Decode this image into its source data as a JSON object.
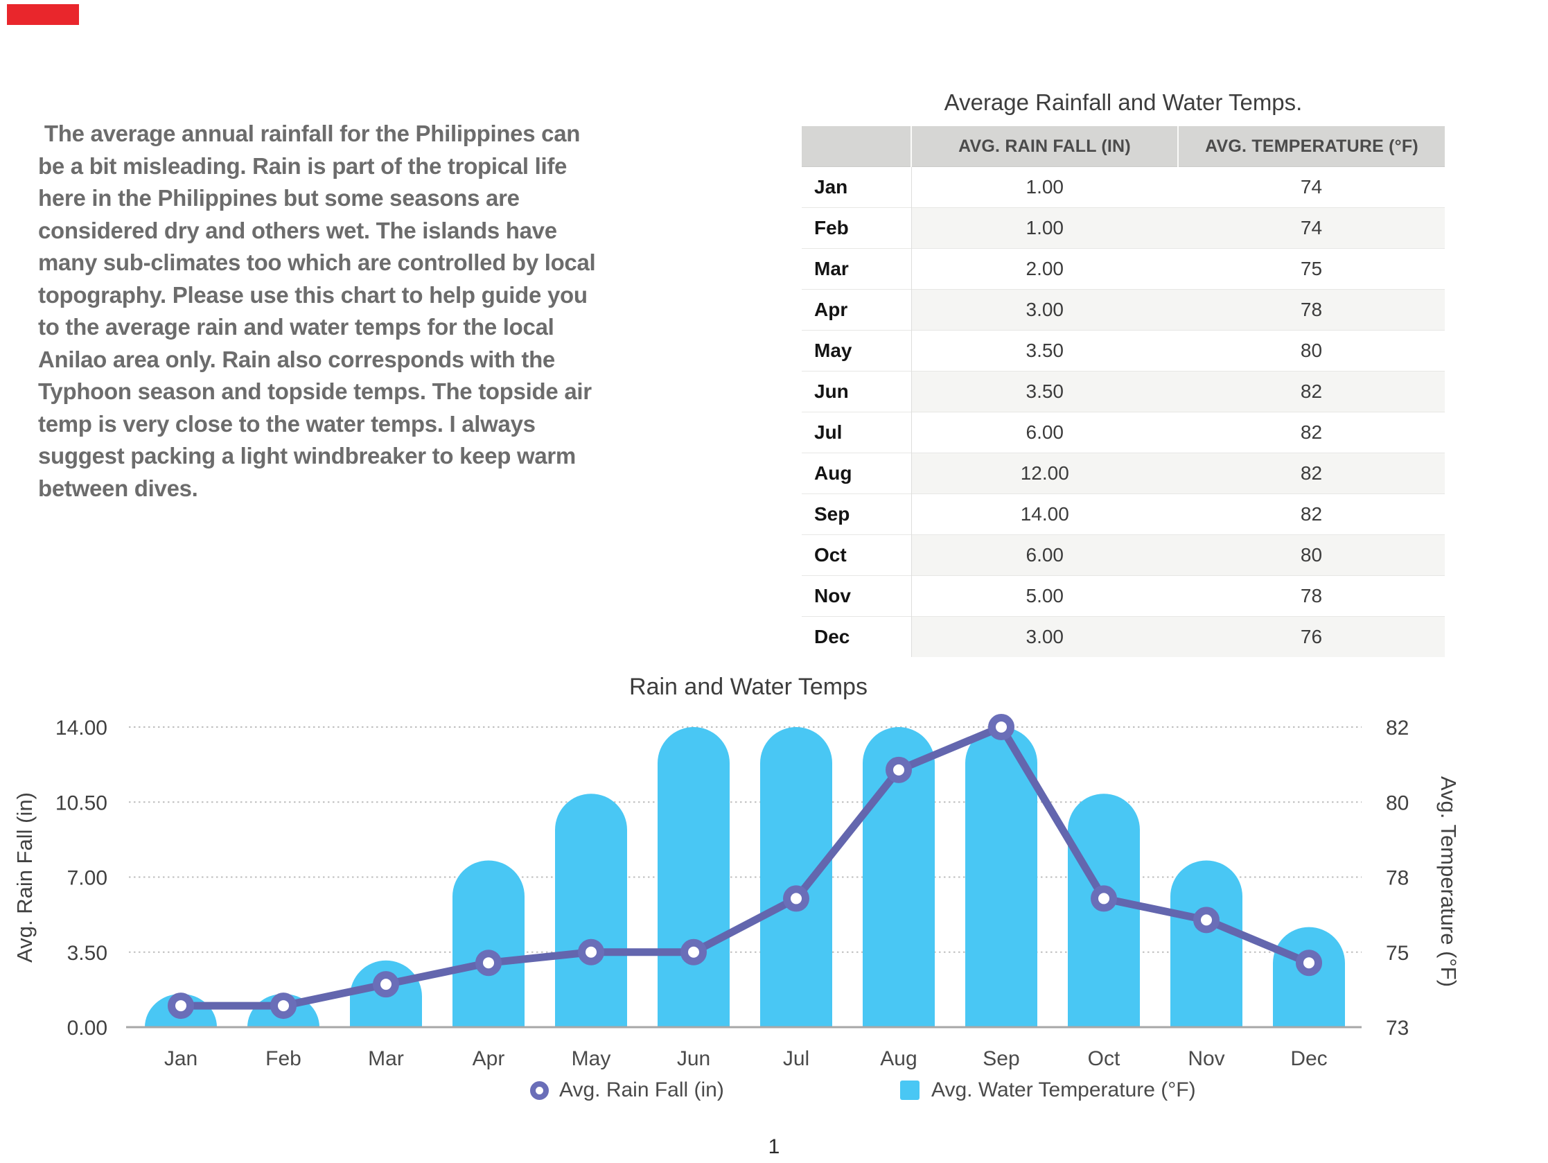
{
  "page": {
    "number": "1",
    "background": "#FFFFFF"
  },
  "red_marker": {
    "color": "#E9262C"
  },
  "intro_paragraph": {
    "text": " The average annual rainfall for the Philippines can\nbe a bit misleading. Rain is part of the tropical life\nhere in the Philippines but some seasons are\nconsidered dry and others wet. The islands have\nmany sub-climates too which are controlled by local\ntopography. Please use this chart to help guide you\nto the average rain and water temps for the local\nAnilao area only. Rain also corresponds with the\nTyphoon season and topside temps. The topside air\ntemp is very close to the water temps. I always\nsuggest packing a light windbreaker to keep warm\nbetween dives."
  },
  "table": {
    "title": "Average Rainfall and Water Temps.",
    "columns": [
      "",
      "AVG. RAIN FALL (IN)",
      "AVG. TEMPERATURE (°F)"
    ],
    "rows": [
      {
        "month": "Jan",
        "rain": "1.00",
        "temp": "74"
      },
      {
        "month": "Feb",
        "rain": "1.00",
        "temp": "74"
      },
      {
        "month": "Mar",
        "rain": "2.00",
        "temp": "75"
      },
      {
        "month": "Apr",
        "rain": "3.00",
        "temp": "78"
      },
      {
        "month": "May",
        "rain": "3.50",
        "temp": "80"
      },
      {
        "month": "Jun",
        "rain": "3.50",
        "temp": "82"
      },
      {
        "month": "Jul",
        "rain": "6.00",
        "temp": "82"
      },
      {
        "month": "Aug",
        "rain": "12.00",
        "temp": "82"
      },
      {
        "month": "Sep",
        "rain": "14.00",
        "temp": "82"
      },
      {
        "month": "Oct",
        "rain": "6.00",
        "temp": "80"
      },
      {
        "month": "Nov",
        "rain": "5.00",
        "temp": "78"
      },
      {
        "month": "Dec",
        "rain": "3.00",
        "temp": "76"
      }
    ]
  },
  "chart_data": {
    "type": "combo",
    "title": "Rain and Water Temps",
    "categories": [
      "Jan",
      "Feb",
      "Mar",
      "Apr",
      "May",
      "Jun",
      "Jul",
      "Aug",
      "Sep",
      "Oct",
      "Nov",
      "Dec"
    ],
    "series": [
      {
        "name": "Avg. Rain Fall (in)",
        "type": "line",
        "axis": "left",
        "color": "#6366AE",
        "marker_color": "#6A6EB8",
        "values": [
          1.0,
          1.0,
          2.0,
          3.0,
          3.5,
          3.5,
          6.0,
          12.0,
          14.0,
          6.0,
          5.0,
          3.0
        ]
      },
      {
        "name": "Avg. Water Temperature (°F)",
        "type": "bar",
        "axis": "right",
        "color": "#49C7F4",
        "values": [
          74,
          74,
          75,
          78,
          80,
          82,
          82,
          82,
          82,
          80,
          78,
          76
        ]
      }
    ],
    "left_axis": {
      "label": "Avg. Rain Fall (in)",
      "min": 0,
      "max": 14,
      "ticks": [
        "14.00",
        "10.50",
        "7.00",
        "3.50",
        "0.00"
      ]
    },
    "right_axis": {
      "label": "Avg. Temperature (°F)",
      "min": 73,
      "max": 82,
      "ticks": [
        "82",
        "80",
        "78",
        "75",
        "73"
      ]
    },
    "grid": "horizontal-dotted",
    "legend_position": "bottom"
  }
}
